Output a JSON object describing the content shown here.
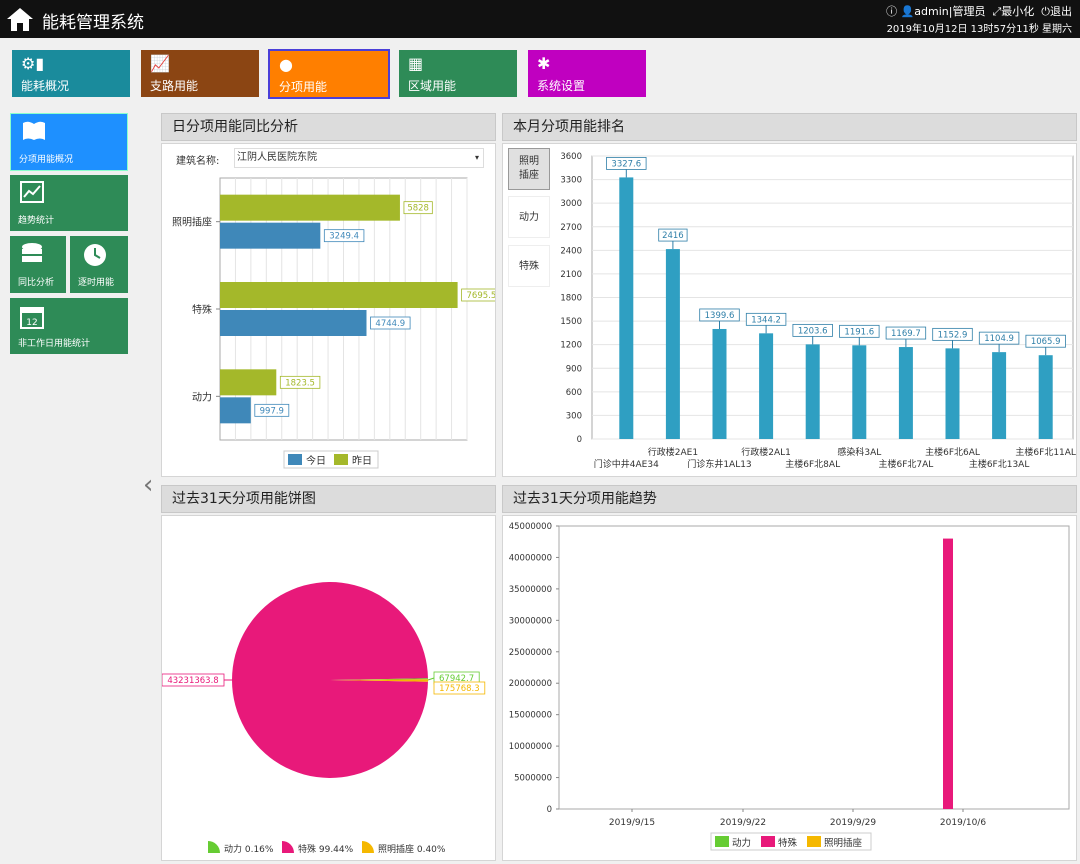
{
  "app": {
    "title": "能耗管理系统",
    "user": "admin|管理员",
    "minimize": "最小化",
    "logout": "退出",
    "datetime": "2019年10月12日 13时57分11秒 星期六"
  },
  "nav": [
    {
      "label": "能耗概况",
      "icon": "energy-icon",
      "color": "#1a8b9c"
    },
    {
      "label": "支路用能",
      "icon": "branch-chart-icon",
      "color": "#8b4513"
    },
    {
      "label": "分项用能",
      "icon": "user-icon",
      "color": "#ff7f00",
      "active": true
    },
    {
      "label": "区域用能",
      "icon": "grid-icon",
      "color": "#2e8b57"
    },
    {
      "label": "系统设置",
      "icon": "gear-icon",
      "color": "#c000c0"
    }
  ],
  "sidebar": [
    {
      "label": "分项用能概况",
      "icon": "book-icon",
      "color": "#1e90ff"
    },
    {
      "label": "趋势统计",
      "icon": "trend-icon",
      "color": "#2e8b57"
    },
    {
      "label": "同比分析",
      "icon": "database-icon",
      "color": "#2e8b57"
    },
    {
      "label": "逐时用能",
      "icon": "clock-icon",
      "color": "#2e8b57"
    },
    {
      "label": "非工作日用能统计",
      "icon": "calendar-icon",
      "color": "#2e8b57",
      "calendar_day": "12"
    }
  ],
  "collapse_arrow": "‹",
  "panels": {
    "daily": {
      "title": "日分项用能同比分析",
      "building_label": "建筑名称:",
      "building_value": "江阴人民医院东院"
    },
    "ranking": {
      "title": "本月分项用能排名",
      "tabs": [
        "照明\n插座",
        "动力",
        "特殊"
      ]
    },
    "pie": {
      "title": "过去31天分项用能饼图"
    },
    "trend": {
      "title": "过去31天分项用能趋势"
    }
  },
  "chart_data": [
    {
      "type": "bar",
      "orientation": "horizontal",
      "categories": [
        "照明插座",
        "特殊",
        "动力"
      ],
      "series": [
        {
          "name": "今日",
          "color": "#3f88b9",
          "values": [
            3249.4,
            4744.9,
            997.9
          ]
        },
        {
          "name": "昨日",
          "color": "#a4b82a",
          "values": [
            5828,
            7695.5,
            1823.5
          ]
        }
      ],
      "xlim": [
        0,
        8000
      ],
      "legend": "bottom"
    },
    {
      "type": "bar",
      "categories": [
        "门诊中井4AE34",
        "行政楼2AE1",
        "门诊东井1AL13",
        "行政楼2AL1",
        "主楼6F北8AL",
        "感染科3AL",
        "主楼6F北7AL",
        "主楼6F北6AL",
        "主楼6F北13AL",
        "主楼6F北11AL"
      ],
      "values": [
        3327.6,
        2416,
        1399.6,
        1344.2,
        1203.6,
        1191.6,
        1169.7,
        1152.9,
        1104.9,
        1065.9
      ],
      "ylim": [
        0,
        3600
      ],
      "yticks": [
        0,
        300,
        600,
        900,
        1200,
        1500,
        1800,
        2100,
        2400,
        2700,
        3000,
        3300,
        3600
      ],
      "color": "#2f9fc2"
    },
    {
      "type": "pie",
      "slices": [
        {
          "name": "动力",
          "value": 67942.7,
          "percent": "0.16%",
          "color": "#66cc33"
        },
        {
          "name": "特殊",
          "value": 43231363.8,
          "percent": "99.44%",
          "color": "#e8197a"
        },
        {
          "name": "照明插座",
          "value": 175768.3,
          "percent": "0.40%",
          "color": "#f5b800"
        }
      ],
      "labels": [
        "43231363.8",
        "67942.7",
        "175768.3"
      ],
      "legend": "bottom"
    },
    {
      "type": "bar",
      "x": [
        "2019/10/5"
      ],
      "series": [
        {
          "name": "动力",
          "color": "#66cc33",
          "values": [
            0
          ]
        },
        {
          "name": "特殊",
          "color": "#e8197a",
          "values": [
            43000000
          ]
        },
        {
          "name": "照明插座",
          "color": "#f5b800",
          "values": [
            0
          ]
        }
      ],
      "xticks": [
        "2019/9/15",
        "2019/9/22",
        "2019/9/29",
        "2019/10/6"
      ],
      "ylim": [
        0,
        45000000
      ],
      "yticks": [
        0,
        5000000,
        10000000,
        15000000,
        20000000,
        25000000,
        30000000,
        35000000,
        40000000,
        45000000
      ],
      "legend": "bottom"
    }
  ]
}
